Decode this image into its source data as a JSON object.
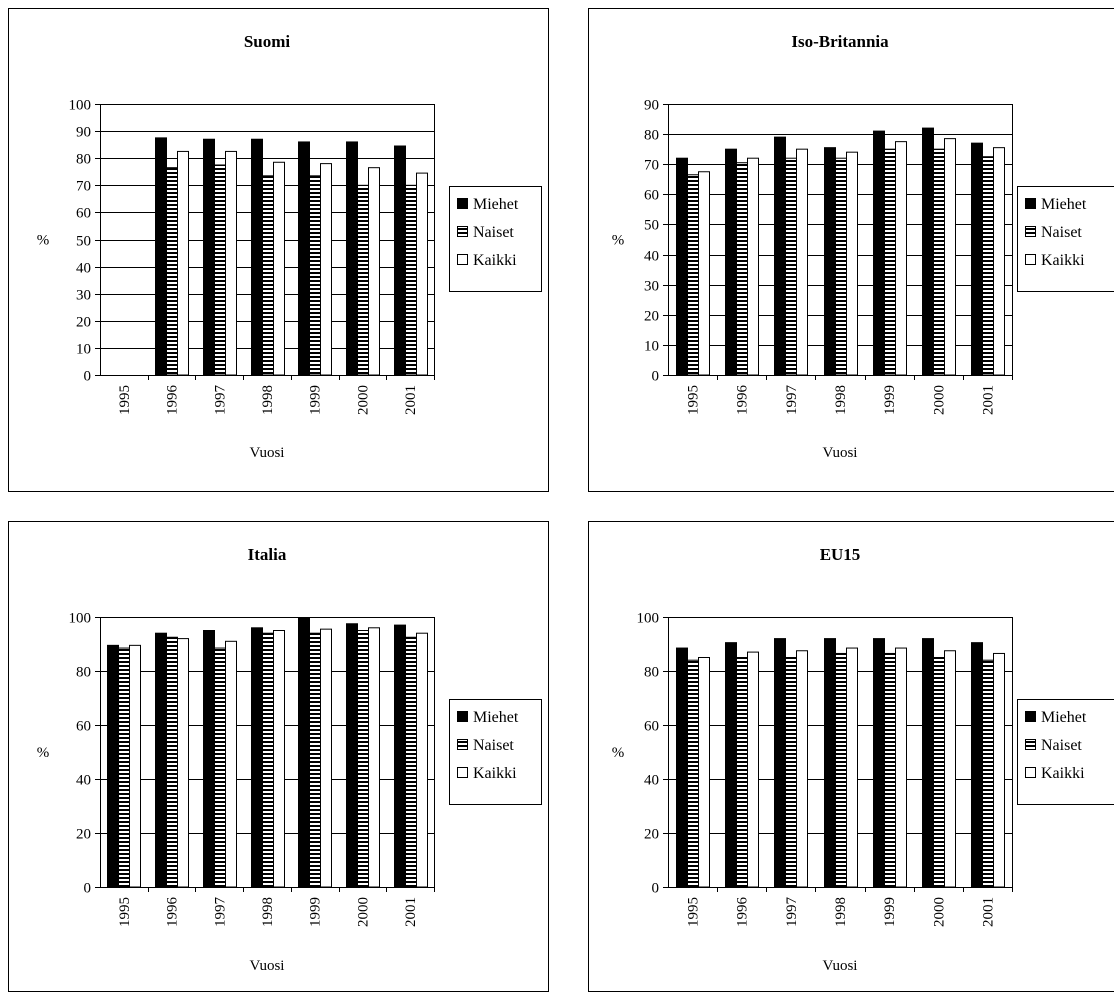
{
  "chart_data": [
    {
      "type": "bar",
      "title": "Suomi",
      "xlabel": "Vuosi",
      "ylabel": "%",
      "ylim": [
        0,
        100
      ],
      "ytick_step": 10,
      "grid": true,
      "legend_position": "right",
      "categories": [
        "1995",
        "1996",
        "1997",
        "1998",
        "1999",
        "2000",
        "2001"
      ],
      "series": [
        {
          "name": "Miehet",
          "values": [
            null,
            87.5,
            87,
            87,
            86,
            86,
            84.5
          ]
        },
        {
          "name": "Naiset",
          "values": [
            null,
            76.5,
            77.5,
            73.5,
            73.5,
            70,
            70
          ]
        },
        {
          "name": "Kaikki",
          "values": [
            null,
            82.5,
            82.5,
            78.5,
            78,
            76.5,
            74.5
          ]
        }
      ]
    },
    {
      "type": "bar",
      "title": "Iso-Britannia",
      "xlabel": "Vuosi",
      "ylabel": "%",
      "ylim": [
        0,
        90
      ],
      "ytick_step": 10,
      "grid": true,
      "legend_position": "right",
      "categories": [
        "1995",
        "1996",
        "1997",
        "1998",
        "1999",
        "2000",
        "2001"
      ],
      "series": [
        {
          "name": "Miehet",
          "values": [
            72,
            75,
            79,
            75.5,
            81,
            82,
            77
          ]
        },
        {
          "name": "Naiset",
          "values": [
            66.5,
            70.5,
            72,
            72,
            75,
            75,
            72.5
          ]
        },
        {
          "name": "Kaikki",
          "values": [
            67.5,
            72,
            75,
            74,
            77.5,
            78.5,
            75.5
          ]
        }
      ]
    },
    {
      "type": "bar",
      "title": "Italia",
      "xlabel": "Vuosi",
      "ylabel": "%",
      "ylim": [
        0,
        100
      ],
      "ytick_step": 20,
      "grid": true,
      "legend_position": "right",
      "categories": [
        "1995",
        "1996",
        "1997",
        "1998",
        "1999",
        "2000",
        "2001"
      ],
      "series": [
        {
          "name": "Miehet",
          "values": [
            89.5,
            94,
            95,
            96,
            99.5,
            97.5,
            97
          ]
        },
        {
          "name": "Naiset",
          "values": [
            88.5,
            92.5,
            88.5,
            94,
            94,
            95,
            92.5
          ]
        },
        {
          "name": "Kaikki",
          "values": [
            89.5,
            92,
            91,
            95,
            95.5,
            96,
            94
          ]
        }
      ]
    },
    {
      "type": "bar",
      "title": "EU15",
      "xlabel": "Vuosi",
      "ylabel": "%",
      "ylim": [
        0,
        100
      ],
      "ytick_step": 20,
      "grid": true,
      "legend_position": "right",
      "categories": [
        "1995",
        "1996",
        "1997",
        "1998",
        "1999",
        "2000",
        "2001"
      ],
      "series": [
        {
          "name": "Miehet",
          "values": [
            88.5,
            90.5,
            92,
            92,
            92,
            92,
            90.5
          ]
        },
        {
          "name": "Naiset",
          "values": [
            84,
            85,
            85,
            86.5,
            86.5,
            85,
            84
          ]
        },
        {
          "name": "Kaikki",
          "values": [
            85,
            87,
            87.5,
            88.5,
            88.5,
            87.5,
            86.5
          ]
        }
      ]
    }
  ]
}
